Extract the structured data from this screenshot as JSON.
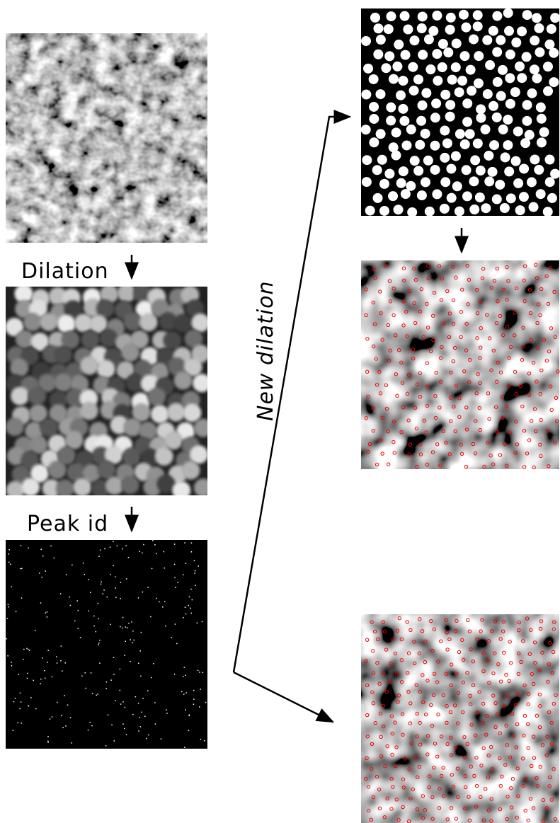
{
  "labels": {
    "dilation": "Dilation",
    "peak_id": "Peak id",
    "new_dilation": "New dilation"
  }
}
